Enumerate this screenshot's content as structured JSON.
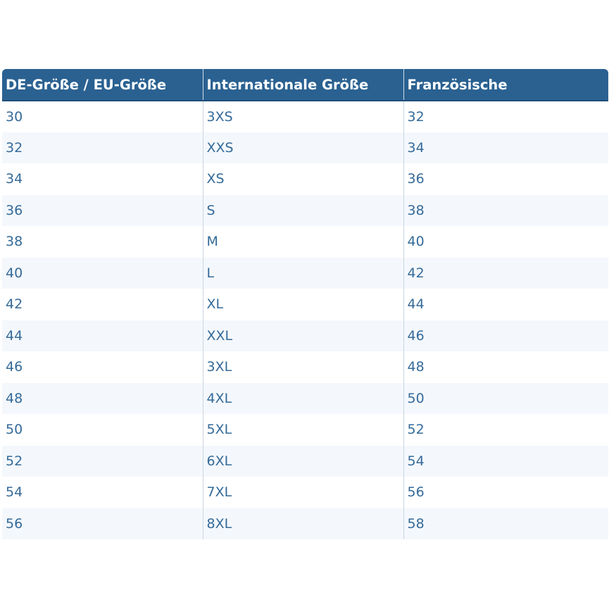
{
  "table": {
    "headers": [
      "DE-Größe / EU-Größe",
      "Internationale Größe",
      "Französische"
    ],
    "rows": [
      [
        "30",
        "3XS",
        "32"
      ],
      [
        "32",
        "XXS",
        "34"
      ],
      [
        "34",
        "XS",
        "36"
      ],
      [
        "36",
        "S",
        "38"
      ],
      [
        "38",
        "M",
        "40"
      ],
      [
        "40",
        "L",
        "42"
      ],
      [
        "42",
        "XL",
        "44"
      ],
      [
        "44",
        "XXL",
        "46"
      ],
      [
        "46",
        "3XL",
        "48"
      ],
      [
        "48",
        "4XL",
        "50"
      ],
      [
        "50",
        "5XL",
        "52"
      ],
      [
        "52",
        "6XL",
        "54"
      ],
      [
        "54",
        "7XL",
        "56"
      ],
      [
        "56",
        "8XL",
        "58"
      ]
    ]
  },
  "colors": {
    "header_background": "#2a6191",
    "header_text": "#ffffff",
    "cell_text": "#356a99",
    "stripe_background": "#f4f8fc"
  }
}
